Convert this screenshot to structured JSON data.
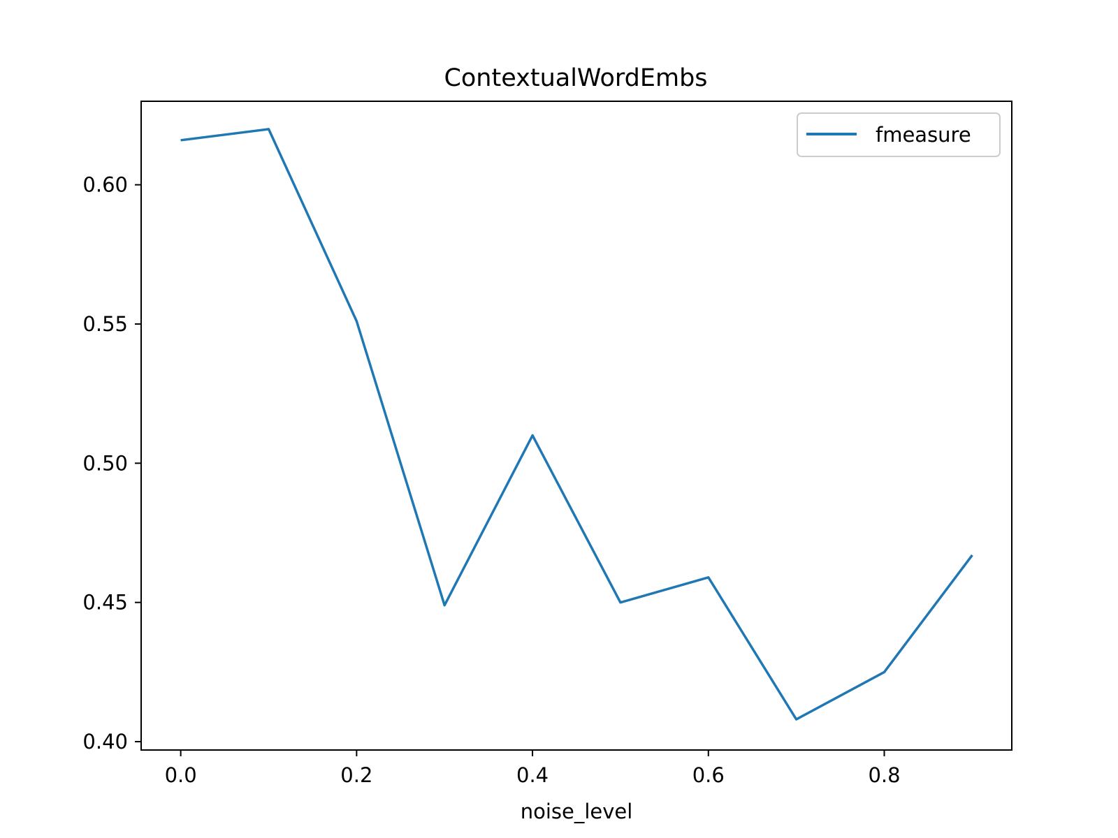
{
  "chart_data": {
    "type": "line",
    "title": "ContextualWordEmbs",
    "xlabel": "noise_level",
    "ylabel": "",
    "x": [
      0.0,
      0.1,
      0.2,
      0.3,
      0.4,
      0.5,
      0.6,
      0.7,
      0.8,
      0.9
    ],
    "series": [
      {
        "name": "fmeasure",
        "color": "#1f77b4",
        "values": [
          0.616,
          0.62,
          0.551,
          0.449,
          0.51,
          0.45,
          0.459,
          0.408,
          0.425,
          0.467
        ]
      }
    ],
    "xlim": [
      -0.045,
      0.945
    ],
    "ylim": [
      0.397,
      0.63
    ],
    "xticks": [
      0.0,
      0.2,
      0.4,
      0.6,
      0.8
    ],
    "xtick_labels": [
      "0.0",
      "0.2",
      "0.4",
      "0.6",
      "0.8"
    ],
    "yticks": [
      0.4,
      0.45,
      0.5,
      0.55,
      0.6
    ],
    "ytick_labels": [
      "0.40",
      "0.45",
      "0.50",
      "0.55",
      "0.60"
    ],
    "legend": {
      "position": "top-right",
      "entries": [
        "fmeasure"
      ]
    },
    "grid": false
  }
}
